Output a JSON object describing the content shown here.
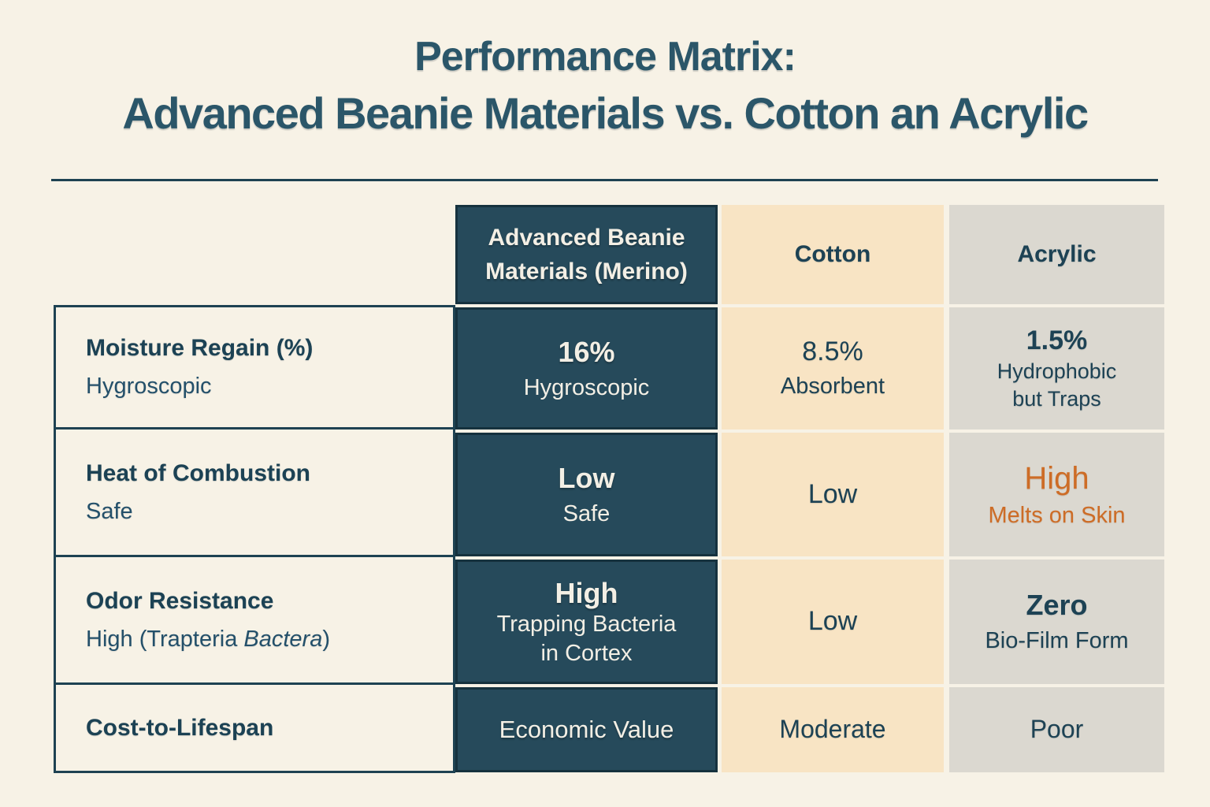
{
  "title": {
    "line1": "Performance Matrix:",
    "line2": "Advanced Beanie Materials vs. Cotton an Acrylic"
  },
  "columns": {
    "merino": {
      "line1": "Advanced Beanie",
      "line2": "Materials (Merino)"
    },
    "cotton": "Cotton",
    "acrylic": "Acrylic"
  },
  "rows": [
    {
      "label": "Moisture Regain (%)",
      "sublabel_pre": "Hygroscopic",
      "merino": {
        "main": "16%",
        "sub": "Hygroscopic"
      },
      "cotton": {
        "main": "8.5%",
        "sub": "Absorbent"
      },
      "acrylic": {
        "main": "1.5%",
        "sub": "Hydrophobic",
        "sub2": "but Traps"
      }
    },
    {
      "label": "Heat of Combustion",
      "sublabel_pre": "Safe",
      "merino": {
        "main": "Low",
        "sub": "Safe"
      },
      "cotton": {
        "main": "Low"
      },
      "acrylic": {
        "main": "High",
        "sub": "Melts on Skin"
      }
    },
    {
      "label": "Odor Resistance",
      "sublabel_pre": "High (Trapteria ",
      "sublabel_italic": "Bactera",
      "sublabel_post": ")",
      "merino": {
        "main": "High",
        "sub": "Trapping Bacteria",
        "sub2": "in Cortex"
      },
      "cotton": {
        "main": "Low"
      },
      "acrylic": {
        "main": "Zero",
        "sub": "Bio-Film Form"
      }
    },
    {
      "label": "Cost-to-Lifespan",
      "merino": {
        "main": "Economic Value"
      },
      "cotton": {
        "main": "Moderate"
      },
      "acrylic": {
        "main": "Poor"
      }
    }
  ],
  "colors": {
    "background": "#f7f2e6",
    "title_text": "#2b5669",
    "dark_text": "#1d4254",
    "merino_cell": "#264a5b",
    "merino_border": "#16323e",
    "merino_text": "#f3efe5",
    "cotton_cell": "#f8e4c4",
    "acrylic_cell": "#dbd8d0",
    "warning_orange": "#cd6c26",
    "rule": "#1e4252"
  },
  "chart_data": {
    "type": "table",
    "title": "Performance Matrix: Advanced Beanie Materials vs. Cotton an Acrylic",
    "columns": [
      "",
      "Advanced Beanie Materials (Merino)",
      "Cotton",
      "Acrylic"
    ],
    "rows": [
      [
        "Moisture Regain (%) Hygroscopic",
        "16% Hygroscopic",
        "8.5% Absorbent",
        "1.5% Hydrophobic but Traps"
      ],
      [
        "Heat of Combustion Safe",
        "Low Safe",
        "Low",
        "High Melts on Skin"
      ],
      [
        "Odor Resistance High (Trapteria Bactera)",
        "High Trapping Bacteria in Cortex",
        "Low",
        "Zero Bio-Film Form"
      ],
      [
        "Cost-to-Lifespan",
        "Economic Value",
        "Moderate",
        "Poor"
      ]
    ],
    "notes": "Acrylic 'High / Melts on Skin' rendered in warning orange; Merino column highlighted in dark teal."
  }
}
